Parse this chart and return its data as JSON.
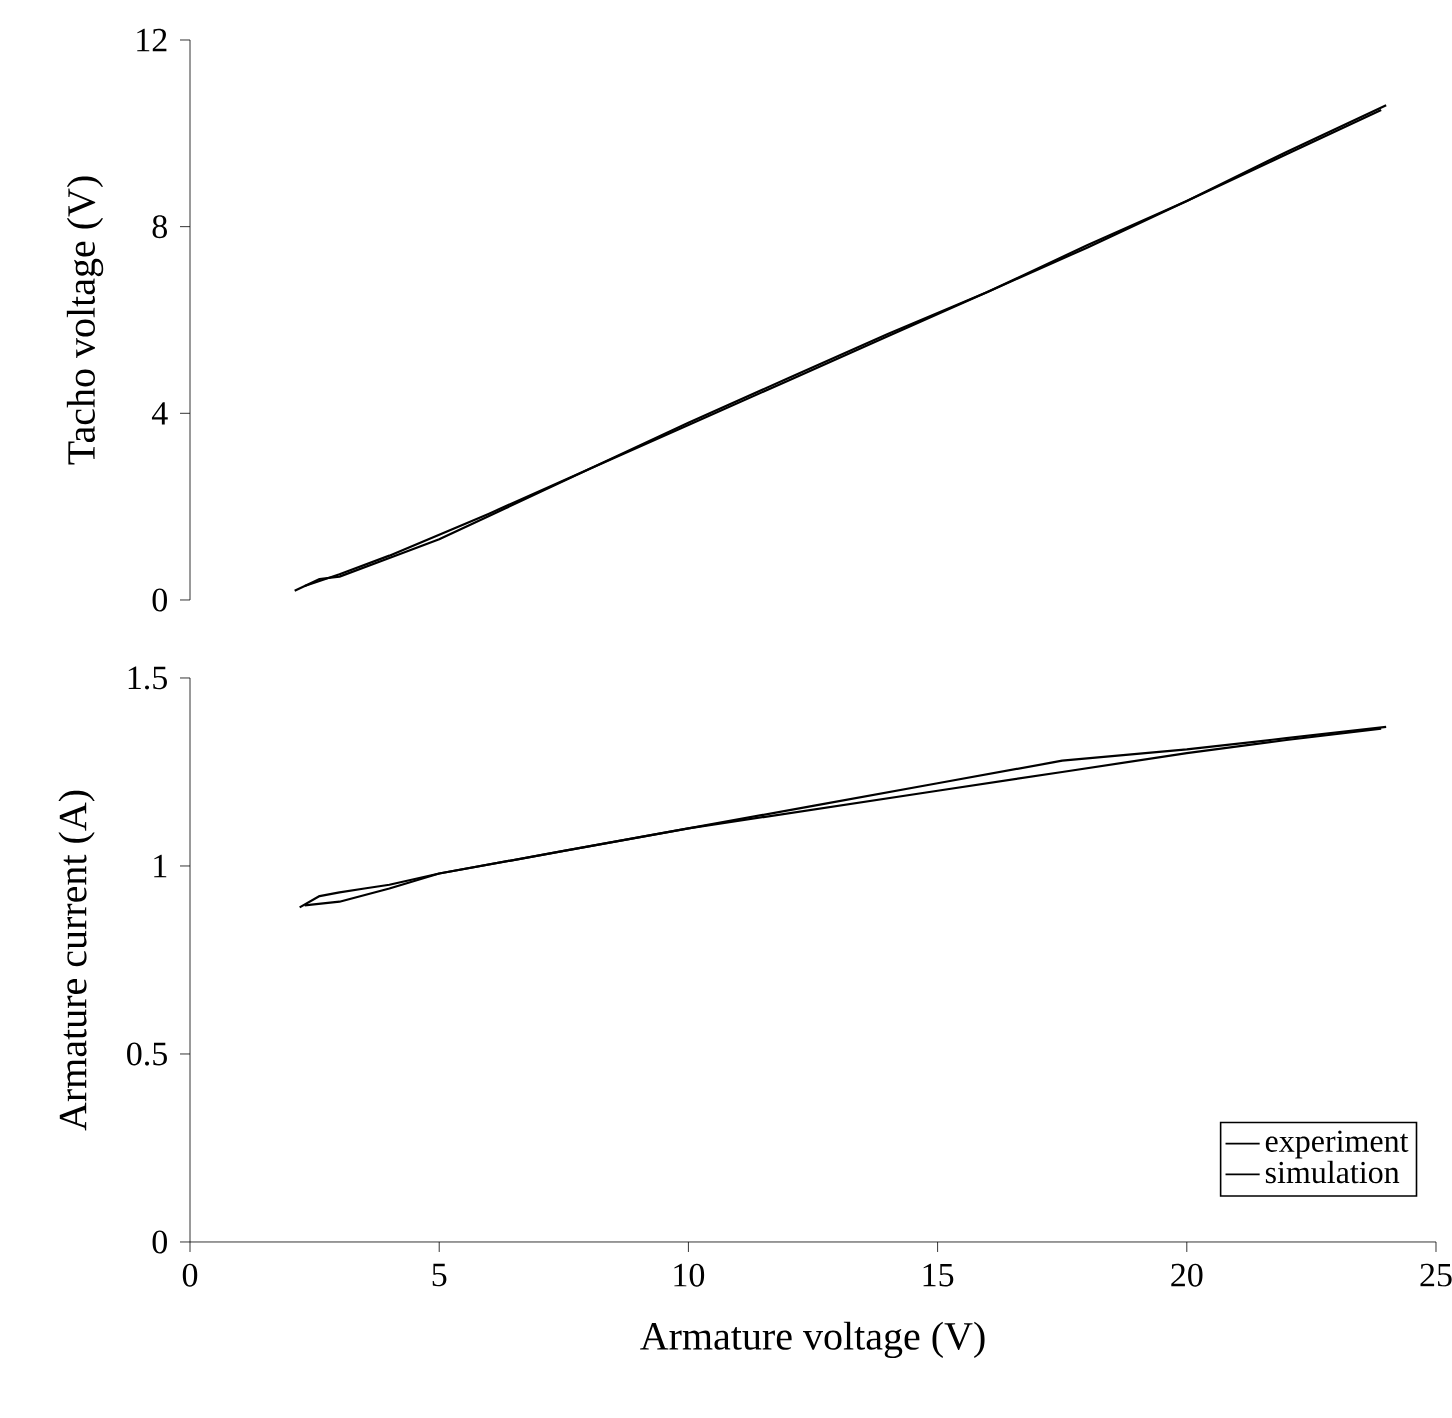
{
  "chart_data": [
    {
      "type": "line",
      "ylabel": "Tacho voltage (V)",
      "xlim": [
        0,
        25
      ],
      "ylim": [
        0,
        12
      ],
      "yticks": [
        0,
        4,
        8,
        12
      ],
      "tick_labels": "y",
      "grid": false,
      "legend": false,
      "series": [
        {
          "color": "#000000",
          "x": [
            2.1,
            2.6,
            3,
            4,
            5,
            6,
            8,
            10,
            12,
            14,
            16,
            18,
            20,
            22,
            24
          ],
          "values": [
            0.2,
            0.45,
            0.5,
            0.9,
            1.3,
            1.8,
            2.8,
            3.8,
            4.75,
            5.7,
            6.6,
            7.6,
            8.55,
            9.6,
            10.6
          ]
        },
        {
          "color": "#000000",
          "x": [
            2.3,
            3,
            4,
            6,
            8,
            10,
            12,
            14,
            16,
            18,
            20,
            22,
            23.9
          ],
          "values": [
            0.3,
            0.55,
            0.95,
            1.85,
            2.8,
            3.75,
            4.7,
            5.65,
            6.6,
            7.55,
            8.55,
            9.55,
            10.5
          ]
        }
      ]
    },
    {
      "type": "line",
      "xlabel": "Armature voltage (V)",
      "ylabel": "Armature current (A)",
      "xlim": [
        0,
        25
      ],
      "xticks": [
        0,
        5,
        10,
        15,
        20,
        25
      ],
      "ylim": [
        0,
        1.5
      ],
      "yticks": [
        0,
        0.5,
        1,
        1.5
      ],
      "grid": false,
      "legend": "bottom right",
      "series": [
        {
          "name": "experiment",
          "color": "#000000",
          "x": [
            2.2,
            2.6,
            3,
            3.5,
            4,
            5,
            7.5,
            10,
            12.5,
            15,
            17.5,
            20,
            22,
            24
          ],
          "values": [
            0.89,
            0.92,
            0.93,
            0.94,
            0.95,
            0.98,
            1.04,
            1.1,
            1.16,
            1.22,
            1.28,
            1.31,
            1.34,
            1.37
          ]
        },
        {
          "name": "simulation",
          "color": "#000000",
          "x": [
            2.3,
            3,
            4,
            5,
            7.5,
            10,
            12.5,
            15,
            17.5,
            20,
            22,
            23.9
          ],
          "values": [
            0.895,
            0.905,
            0.94,
            0.98,
            1.04,
            1.1,
            1.15,
            1.2,
            1.25,
            1.3,
            1.335,
            1.365
          ]
        }
      ]
    }
  ]
}
